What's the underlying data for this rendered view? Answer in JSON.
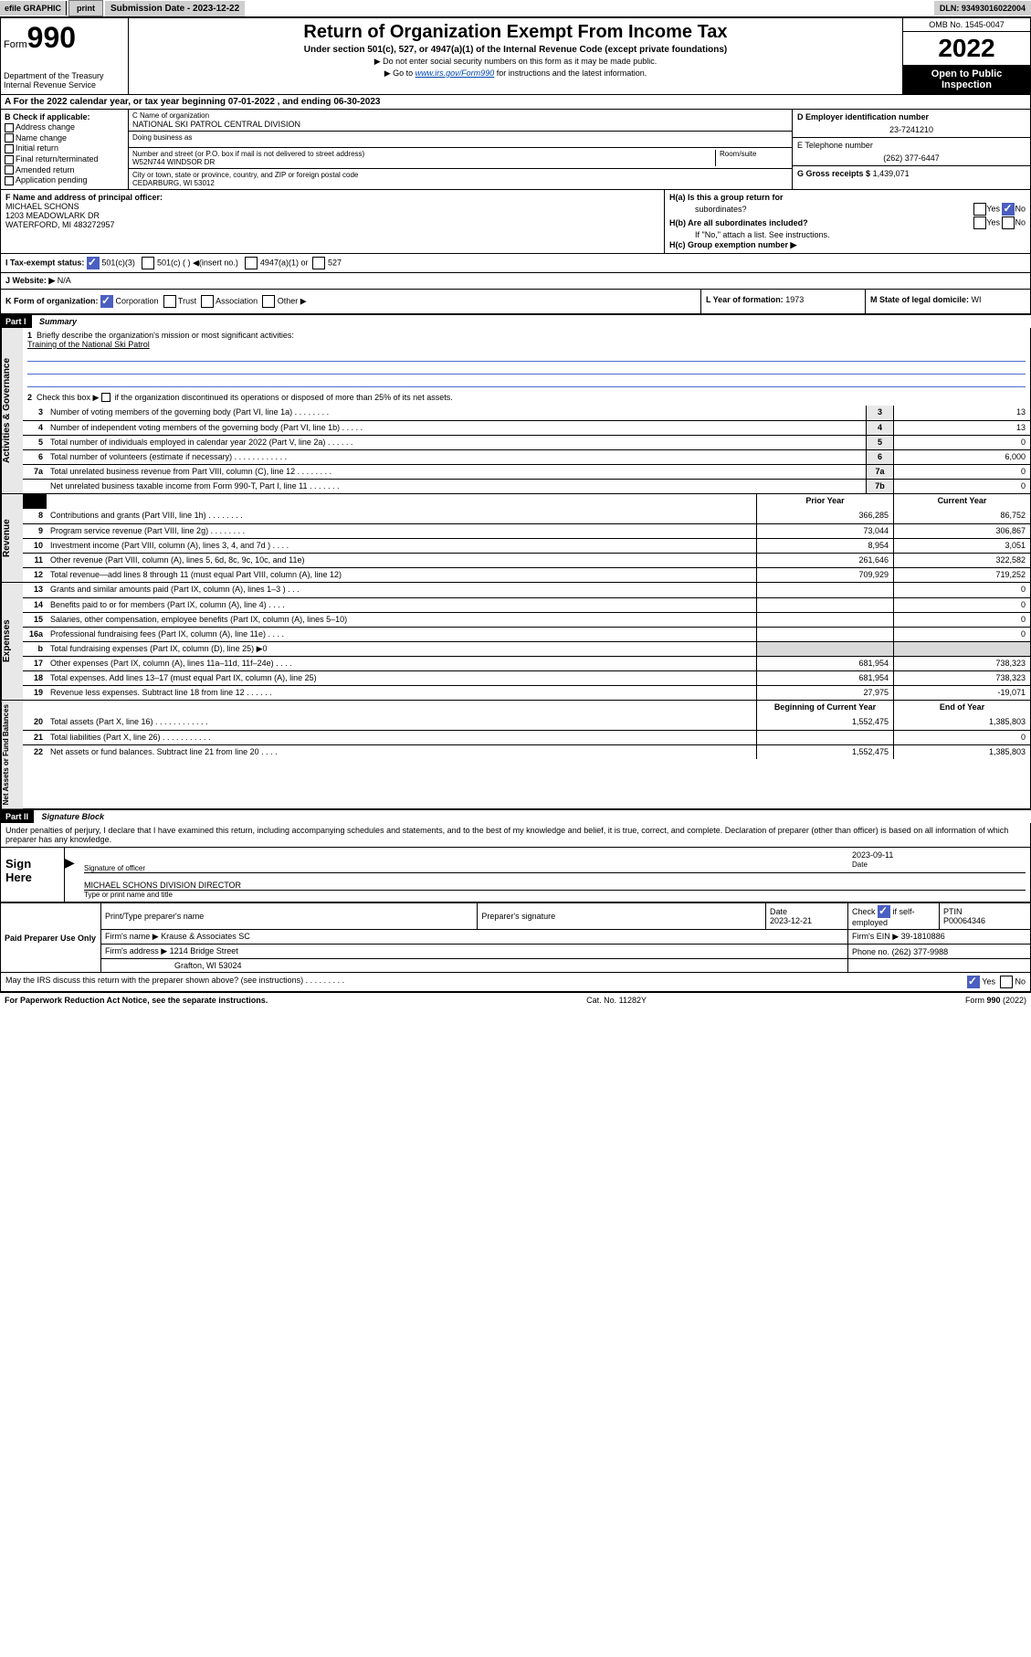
{
  "colors": {
    "accent": "#4b5fc1",
    "link": "#0047b3",
    "gray_bg": "#cfcfcf",
    "light_gray": "#e8e8e8"
  },
  "topbar": {
    "efile_label": "efile GRAPHIC",
    "print_btn": "print",
    "sub_date_label": "Submission Date - 2023-12-22",
    "dln": "DLN: 93493016022004"
  },
  "header": {
    "form_word": "Form",
    "form_no": "990",
    "title": "Return of Organization Exempt From Income Tax",
    "sub1": "Under section 501(c), 527, or 4947(a)(1) of the Internal Revenue Code (except private foundations)",
    "sub2": "▶ Do not enter social security numbers on this form as it may be made public.",
    "sub3_pre": "▶ Go to ",
    "sub3_link": "www.irs.gov/Form990",
    "sub3_post": " for instructions and the latest information.",
    "dept": "Department of the Treasury",
    "irs": "Internal Revenue Service",
    "omb": "OMB No. 1545-0047",
    "year": "2022",
    "open": "Open to Public Inspection"
  },
  "line_a": "A For the 2022 calendar year, or tax year beginning 07-01-2022     , and ending 06-30-2023",
  "col_b": {
    "hdr": "B Check if applicable:",
    "opts": [
      "Address change",
      "Name change",
      "Initial return",
      "Final return/terminated",
      "Amended return",
      "Application pending"
    ]
  },
  "col_c": {
    "name_lbl": "C Name of organization",
    "name": "NATIONAL SKI PATROL CENTRAL DIVISION",
    "dba_lbl": "Doing business as",
    "addr_lbl": "Number and street (or P.O. box if mail is not delivered to street address)",
    "room_lbl": "Room/suite",
    "addr": "W52N744 WINDSOR DR",
    "city_lbl": "City or town, state or province, country, and ZIP or foreign postal code",
    "city": "CEDARBURG, WI  53012"
  },
  "col_d": {
    "d_lbl": "D Employer identification number",
    "d_val": "23-7241210",
    "e_lbl": "E Telephone number",
    "e_val": "(262) 377-6447",
    "g_lbl": "G Gross receipts $",
    "g_val": "1,439,071"
  },
  "f": {
    "lbl": "F Name and address of principal officer:",
    "name": "MICHAEL SCHONS",
    "addr1": "1203 MEADOWLARK DR",
    "addr2": "WATERFORD, MI  483272957"
  },
  "h": {
    "a_lbl": "H(a)  Is this a group return for",
    "a_lbl2": "subordinates?",
    "b_lbl": "H(b)  Are all subordinates included?",
    "b_note": "If \"No,\" attach a list. See instructions.",
    "c_lbl": "H(c)  Group exemption number ▶",
    "yes": "Yes",
    "no": "No"
  },
  "row_i": {
    "lbl": "I     Tax-exempt status:",
    "opt1": "501(c)(3)",
    "opt2": "501(c) (   ) ◀(insert no.)",
    "opt3": "4947(a)(1) or",
    "opt4": "527"
  },
  "row_j": {
    "lbl": "J    Website: ▶",
    "val": "N/A"
  },
  "row_k": {
    "lbl": "K Form of organization:",
    "corp": "Corporation",
    "trust": "Trust",
    "assoc": "Association",
    "other": "Other ▶"
  },
  "row_l": {
    "lbl": "L Year of formation:",
    "val": "1973"
  },
  "row_m": {
    "lbl": "M State of legal domicile:",
    "val": "WI"
  },
  "part1": {
    "hdr": "Part I",
    "title": "Summary",
    "q1": "Briefly describe the organization's mission or most significant activities:",
    "q1_val": "Training of the National Ski Patrol",
    "q2": "Check this box ▶        if the organization discontinued its operations or disposed of more than 25% of its net assets.",
    "prior_year": "Prior Year",
    "cur_year": "Current Year",
    "beg_year": "Beginning of Current Year",
    "end_year": "End of Year",
    "sections": {
      "governance": "Activities & Governance",
      "revenue": "Revenue",
      "expenses": "Expenses",
      "net": "Net Assets or Fund Balances"
    },
    "gov_lines": [
      {
        "n": "3",
        "t": "Number of voting members of the governing body (Part VI, line 1a)   .     .     .     .     .     .     .     .",
        "box": "3",
        "v": "13"
      },
      {
        "n": "4",
        "t": "Number of independent voting members of the governing body (Part VI, line 1b)   .     .     .     .     .",
        "box": "4",
        "v": "13"
      },
      {
        "n": "5",
        "t": "Total number of individuals employed in calendar year 2022 (Part V, line 2a)   .     .     .     .     .     .",
        "box": "5",
        "v": "0"
      },
      {
        "n": "6",
        "t": "Total number of volunteers (estimate if necessary)   .     .     .     .     .     .     .     .     .     .     .     .",
        "box": "6",
        "v": "6,000"
      },
      {
        "n": "7a",
        "t": "Total unrelated business revenue from Part VIII, column (C), line 12   .     .     .     .     .     .     .     .",
        "box": "7a",
        "v": "0"
      },
      {
        "n": "",
        "t": "Net unrelated business taxable income from Form 990-T, Part I, line 11   .     .     .     .     .     .     .",
        "box": "7b",
        "v": "0"
      }
    ],
    "rev_lines": [
      {
        "n": "8",
        "t": "Contributions and grants (Part VIII, line 1h)   .     .     .     .     .     .     .     .",
        "py": "366,285",
        "cy": "86,752"
      },
      {
        "n": "9",
        "t": "Program service revenue (Part VIII, line 2g)   .     .     .     .     .     .     .     .",
        "py": "73,044",
        "cy": "306,867"
      },
      {
        "n": "10",
        "t": "Investment income (Part VIII, column (A), lines 3, 4, and 7d )   .     .     .     .",
        "py": "8,954",
        "cy": "3,051"
      },
      {
        "n": "11",
        "t": "Other revenue (Part VIII, column (A), lines 5, 6d, 8c, 9c, 10c, and 11e)",
        "py": "261,646",
        "cy": "322,582"
      },
      {
        "n": "12",
        "t": "Total revenue—add lines 8 through 11 (must equal Part VIII, column (A), line 12)",
        "py": "709,929",
        "cy": "719,252"
      }
    ],
    "exp_lines": [
      {
        "n": "13",
        "t": "Grants and similar amounts paid (Part IX, column (A), lines 1–3 )   .     .     .",
        "py": "",
        "cy": "0"
      },
      {
        "n": "14",
        "t": "Benefits paid to or for members (Part IX, column (A), line 4)   .     .     .     .",
        "py": "",
        "cy": "0"
      },
      {
        "n": "15",
        "t": "Salaries, other compensation, employee benefits (Part IX, column (A), lines 5–10)",
        "py": "",
        "cy": "0"
      },
      {
        "n": "16a",
        "t": "Professional fundraising fees (Part IX, column (A), line 11e)   .     .     .     .",
        "py": "",
        "cy": "0"
      },
      {
        "n": "b",
        "t": "Total fundraising expenses (Part IX, column (D), line 25) ▶0",
        "py": "gray",
        "cy": "gray"
      },
      {
        "n": "17",
        "t": "Other expenses (Part IX, column (A), lines 11a–11d, 11f–24e)   .     .     .     .",
        "py": "681,954",
        "cy": "738,323"
      },
      {
        "n": "18",
        "t": "Total expenses. Add lines 13–17 (must equal Part IX, column (A), line 25)",
        "py": "681,954",
        "cy": "738,323"
      },
      {
        "n": "19",
        "t": "Revenue less expenses. Subtract line 18 from line 12   .     .     .     .     .     .",
        "py": "27,975",
        "cy": "-19,071"
      }
    ],
    "net_lines": [
      {
        "n": "20",
        "t": "Total assets (Part X, line 16)  .     .     .     .     .     .     .     .     .     .     .     .",
        "py": "1,552,475",
        "cy": "1,385,803"
      },
      {
        "n": "21",
        "t": "Total liabilities (Part X, line 26)  .     .     .     .     .     .     .     .     .     .     .",
        "py": "",
        "cy": "0"
      },
      {
        "n": "22",
        "t": "Net assets or fund balances. Subtract line 21 from line 20   .     .     .     .",
        "py": "1,552,475",
        "cy": "1,385,803"
      }
    ]
  },
  "part2": {
    "hdr": "Part II",
    "title": "Signature Block",
    "decl": "Under penalties of perjury, I declare that I have examined this return, including accompanying schedules and statements, and to the best of my knowledge and belief, it is true, correct, and complete. Declaration of preparer (other than officer) is based on all information of which preparer has any knowledge."
  },
  "sign": {
    "label": "Sign Here",
    "sig_officer": "Signature of officer",
    "date_lbl": "Date",
    "date": "2023-09-11",
    "name": "MICHAEL SCHONS  DIVISION DIRECTOR",
    "type_name": "Type or print name and title"
  },
  "prep": {
    "label": "Paid Preparer Use Only",
    "col_name": "Print/Type preparer's name",
    "col_sig": "Preparer's signature",
    "col_date": "Date",
    "date": "2023-12-21",
    "col_chk": "Check          if self-employed",
    "col_ptin": "PTIN",
    "ptin": "P00064346",
    "firm_name_lbl": "Firm's name     ▶",
    "firm_name": "Krause & Associates SC",
    "firm_ein_lbl": "Firm's EIN ▶",
    "firm_ein": "39-1810886",
    "firm_addr_lbl": "Firm's address ▶",
    "firm_addr": "1214 Bridge Street",
    "firm_city": "Grafton, WI  53024",
    "phone_lbl": "Phone no.",
    "phone": "(262) 377-9988"
  },
  "footer": {
    "may_discuss": "May the IRS discuss this return with the preparer shown above? (see instructions)    .     .     .     .     .     .     .     .     .",
    "yes": "Yes",
    "no": "No",
    "paperwork": "For Paperwork Reduction Act Notice, see the separate instructions.",
    "cat": "Cat. No. 11282Y",
    "form": "Form 990 (2022)"
  }
}
